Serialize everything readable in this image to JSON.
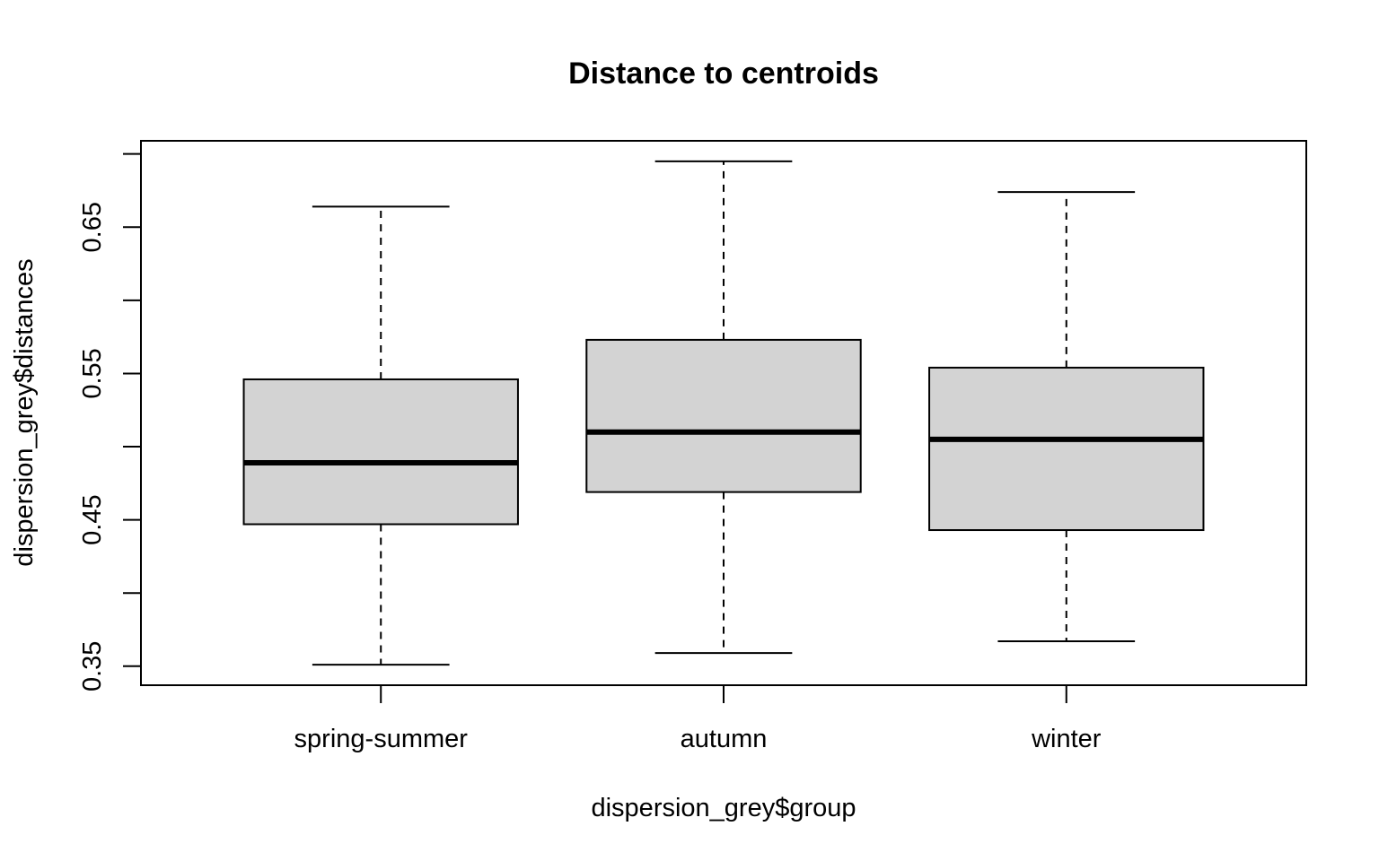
{
  "chart_data": {
    "type": "boxplot",
    "title": "Distance to centroids",
    "xlabel": "dispersion_grey$group",
    "ylabel": "dispersion_grey$distances",
    "categories": [
      "spring-summer",
      "autumn",
      "winter"
    ],
    "boxes": [
      {
        "name": "spring-summer",
        "whisker_low": 0.351,
        "q1": 0.447,
        "median": 0.489,
        "q3": 0.546,
        "whisker_high": 0.664
      },
      {
        "name": "autumn",
        "whisker_low": 0.359,
        "q1": 0.469,
        "median": 0.51,
        "q3": 0.573,
        "whisker_high": 0.695
      },
      {
        "name": "winter",
        "whisker_low": 0.367,
        "q1": 0.443,
        "median": 0.505,
        "q3": 0.554,
        "whisker_high": 0.674
      }
    ],
    "yticks": [
      0.35,
      0.4,
      0.45,
      0.5,
      0.55,
      0.6,
      0.65,
      0.7
    ],
    "ytick_labels": [
      "0.35",
      "",
      "0.45",
      "",
      "0.55",
      "",
      "0.65",
      ""
    ],
    "ylim": [
      0.337,
      0.709
    ],
    "box_color": "#d3d3d3",
    "grid": false,
    "legend": "none"
  }
}
